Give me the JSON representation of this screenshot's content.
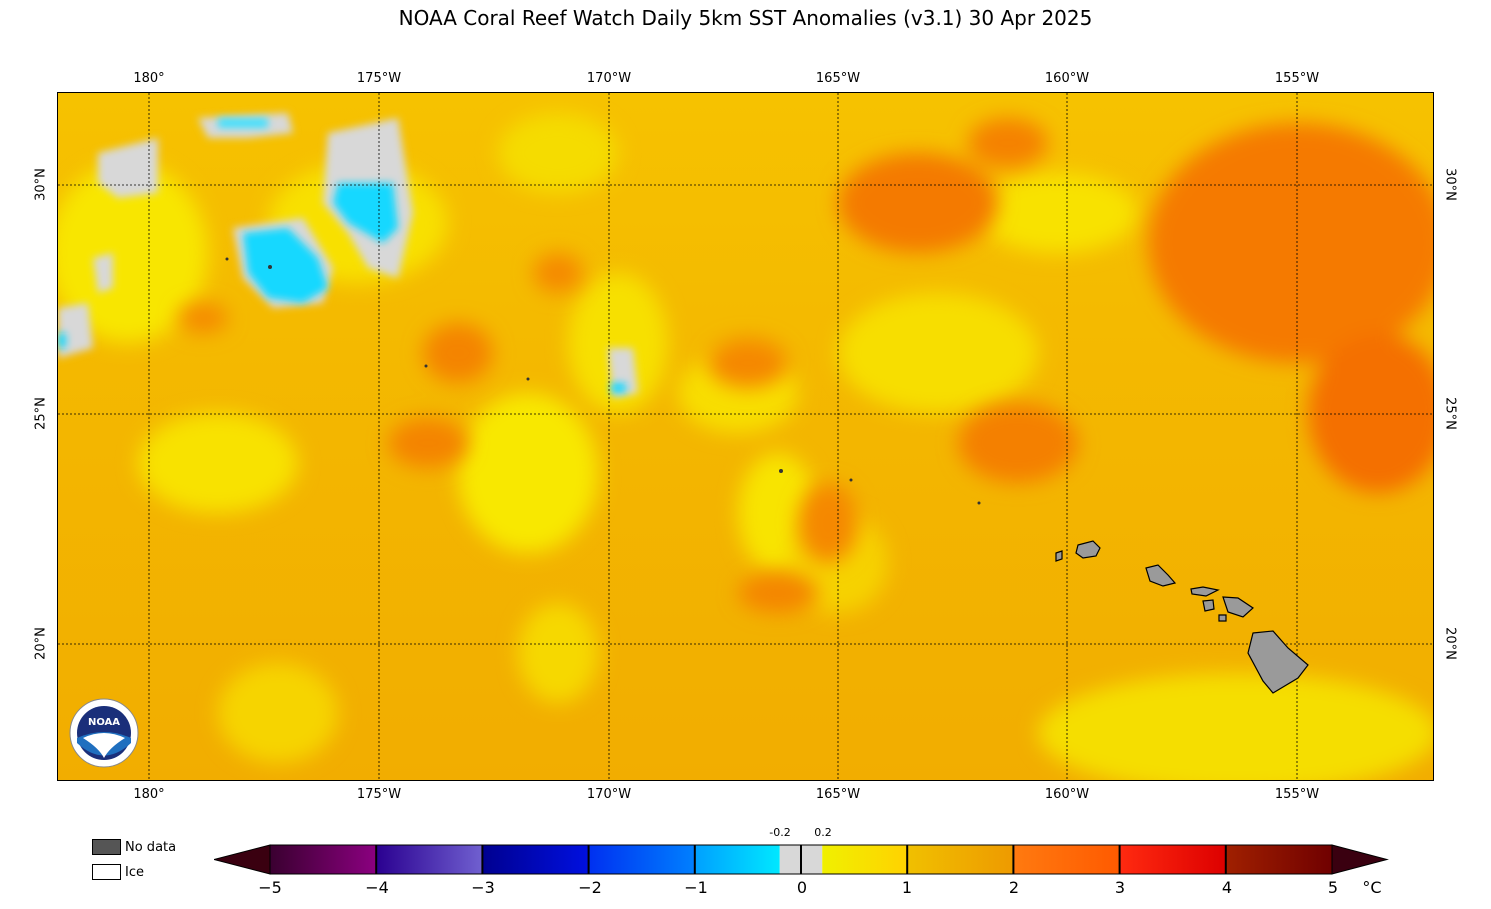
{
  "title": "NOAA Coral Reef Watch Daily 5km SST Anomalies  (v3.1)   30 Apr 2025",
  "lon_labels": [
    "180°",
    "175°W",
    "170°W",
    "165°W",
    "160°W",
    "155°W"
  ],
  "lat_labels": [
    "30°N",
    "25°N",
    "20°N"
  ],
  "legend": {
    "no_data": "No data",
    "ice": "Ice",
    "no_data_color": "#555555",
    "ice_color": "#ffffff"
  },
  "colorbar": {
    "ticks": [
      "−5",
      "−4",
      "−3",
      "−2",
      "−1",
      "0",
      "1",
      "2",
      "3",
      "4",
      "5"
    ],
    "small_labels": [
      "-0.2",
      "0.2"
    ],
    "unit": "°C",
    "segments": [
      {
        "from": "#3a0030",
        "to": "#8b0080"
      },
      {
        "from": "#2a0090",
        "to": "#7060d0"
      },
      {
        "from": "#000090",
        "to": "#0010e0"
      },
      {
        "from": "#0030f0",
        "to": "#0080ff"
      },
      {
        "from": "#00a0ff",
        "to": "#00e8ff"
      },
      {
        "from": "#d8d8d8",
        "to": "#d8d8d8"
      },
      {
        "from": "#f0f000",
        "to": "#ffd200"
      },
      {
        "from": "#f0c000",
        "to": "#ee9a00"
      },
      {
        "from": "#ff7a10",
        "to": "#ff5a00"
      },
      {
        "from": "#ff2a10",
        "to": "#dd0000"
      },
      {
        "from": "#a02000",
        "to": "#700000"
      }
    ]
  },
  "logo_text": "NOAA",
  "colors": {
    "ocean_base": "#f4b800",
    "land": "#9a9a9a",
    "no_data": "#d8d8d8",
    "cold": "#14d8ff"
  }
}
